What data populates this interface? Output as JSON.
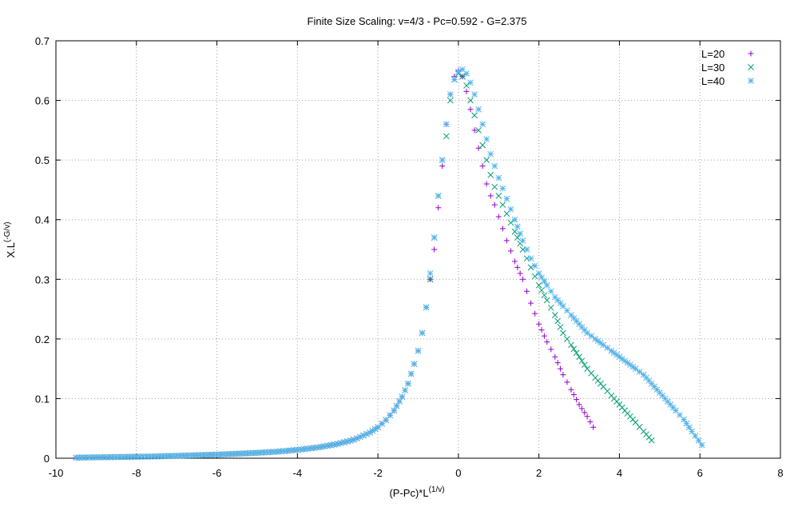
{
  "chart_data": {
    "type": "scatter",
    "title": "Finite Size Scaling: v=4/3 - Pc=0.592 - G=2.375",
    "xlabel": {
      "base": "(P-Pc)*L",
      "sup": "(1/v)"
    },
    "ylabel": {
      "base": "X.L",
      "sup": "(-G/v)"
    },
    "xlim": [
      -10,
      8
    ],
    "ylim": [
      0,
      0.7
    ],
    "x_ticks": [
      "-10",
      "-8",
      "-6",
      "-4",
      "-2",
      "0",
      "2",
      "4",
      "6",
      "8"
    ],
    "y_ticks": [
      "0",
      "0.1",
      "0.2",
      "0.3",
      "0.4",
      "0.5",
      "0.6",
      "0.7"
    ],
    "grid": true,
    "legend_position": "top-right",
    "series": [
      {
        "name": "L=20",
        "marker": "plus",
        "color": "#9400d3",
        "points": [
          [
            -9.5,
            0.001
          ],
          [
            -9.0,
            0.0015
          ],
          [
            -8.5,
            0.002
          ],
          [
            -8.0,
            0.0025
          ],
          [
            -7.5,
            0.003
          ],
          [
            -7.0,
            0.004
          ],
          [
            -6.5,
            0.005
          ],
          [
            -6.0,
            0.006
          ],
          [
            -5.5,
            0.0075
          ],
          [
            -5.0,
            0.009
          ],
          [
            -4.5,
            0.011
          ],
          [
            -4.0,
            0.014
          ],
          [
            -3.5,
            0.018
          ],
          [
            -3.0,
            0.024
          ],
          [
            -2.6,
            0.031
          ],
          [
            -2.2,
            0.043
          ],
          [
            -2.0,
            0.052
          ],
          [
            -1.8,
            0.064
          ],
          [
            -1.6,
            0.08
          ],
          [
            -1.4,
            0.103
          ],
          [
            -1.25,
            0.125
          ],
          [
            -1.1,
            0.158
          ],
          [
            -1.0,
            0.18
          ],
          [
            -0.9,
            0.21
          ],
          [
            -0.8,
            0.253
          ],
          [
            -0.7,
            0.3
          ],
          [
            -0.6,
            0.35
          ],
          [
            -0.5,
            0.42
          ],
          [
            -0.4,
            0.49
          ],
          [
            -0.3,
            0.56
          ],
          [
            -0.2,
            0.61
          ],
          [
            -0.1,
            0.64
          ],
          [
            0.0,
            0.65
          ],
          [
            0.1,
            0.64
          ],
          [
            0.2,
            0.615
          ],
          [
            0.3,
            0.585
          ],
          [
            0.4,
            0.55
          ],
          [
            0.5,
            0.52
          ],
          [
            0.6,
            0.49
          ],
          [
            0.7,
            0.46
          ],
          [
            0.8,
            0.44
          ],
          [
            0.9,
            0.425
          ],
          [
            1.0,
            0.405
          ],
          [
            1.1,
            0.385
          ],
          [
            1.2,
            0.365
          ],
          [
            1.4,
            0.33
          ],
          [
            1.6,
            0.3
          ],
          [
            1.8,
            0.26
          ],
          [
            2.0,
            0.225
          ],
          [
            2.2,
            0.195
          ],
          [
            2.4,
            0.17
          ],
          [
            2.6,
            0.14
          ],
          [
            2.8,
            0.115
          ],
          [
            3.0,
            0.09
          ],
          [
            3.2,
            0.07
          ],
          [
            3.35,
            0.052
          ]
        ]
      },
      {
        "name": "L=30",
        "marker": "cross",
        "color": "#009e73",
        "points": [
          [
            -9.5,
            0.001
          ],
          [
            -9.0,
            0.0015
          ],
          [
            -8.5,
            0.002
          ],
          [
            -8.0,
            0.0025
          ],
          [
            -7.5,
            0.003
          ],
          [
            -7.0,
            0.004
          ],
          [
            -6.5,
            0.005
          ],
          [
            -6.0,
            0.006
          ],
          [
            -5.5,
            0.0075
          ],
          [
            -5.0,
            0.009
          ],
          [
            -4.5,
            0.011
          ],
          [
            -4.0,
            0.014
          ],
          [
            -3.5,
            0.018
          ],
          [
            -3.0,
            0.024
          ],
          [
            -2.6,
            0.031
          ],
          [
            -2.2,
            0.043
          ],
          [
            -2.0,
            0.052
          ],
          [
            -1.8,
            0.064
          ],
          [
            -1.6,
            0.08
          ],
          [
            -1.4,
            0.103
          ],
          [
            -1.25,
            0.125
          ],
          [
            -1.1,
            0.158
          ],
          [
            -1.0,
            0.18
          ],
          [
            -0.9,
            0.21
          ],
          [
            -0.8,
            0.253
          ],
          [
            -0.7,
            0.3
          ],
          [
            -0.6,
            0.37
          ],
          [
            -0.5,
            0.44
          ],
          [
            -0.4,
            0.5
          ],
          [
            -0.3,
            0.54
          ],
          [
            -0.2,
            0.6
          ],
          [
            -0.1,
            0.635
          ],
          [
            0.0,
            0.645
          ],
          [
            0.1,
            0.64
          ],
          [
            0.2,
            0.625
          ],
          [
            0.3,
            0.6
          ],
          [
            0.4,
            0.575
          ],
          [
            0.5,
            0.55
          ],
          [
            0.6,
            0.525
          ],
          [
            0.7,
            0.5
          ],
          [
            0.8,
            0.475
          ],
          [
            0.9,
            0.455
          ],
          [
            1.0,
            0.44
          ],
          [
            1.2,
            0.41
          ],
          [
            1.4,
            0.38
          ],
          [
            1.6,
            0.35
          ],
          [
            1.8,
            0.32
          ],
          [
            2.0,
            0.29
          ],
          [
            2.2,
            0.265
          ],
          [
            2.4,
            0.24
          ],
          [
            2.6,
            0.21
          ],
          [
            2.8,
            0.19
          ],
          [
            3.0,
            0.17
          ],
          [
            3.2,
            0.15
          ],
          [
            3.4,
            0.135
          ],
          [
            3.6,
            0.12
          ],
          [
            3.8,
            0.105
          ],
          [
            4.0,
            0.09
          ],
          [
            4.2,
            0.075
          ],
          [
            4.4,
            0.06
          ],
          [
            4.6,
            0.045
          ],
          [
            4.8,
            0.03
          ]
        ]
      },
      {
        "name": "L=40",
        "marker": "star",
        "color": "#56b4e9",
        "points": [
          [
            -9.5,
            0.001
          ],
          [
            -9.0,
            0.0015
          ],
          [
            -8.5,
            0.002
          ],
          [
            -8.0,
            0.0025
          ],
          [
            -7.5,
            0.003
          ],
          [
            -7.0,
            0.004
          ],
          [
            -6.5,
            0.005
          ],
          [
            -6.0,
            0.006
          ],
          [
            -5.5,
            0.0075
          ],
          [
            -5.0,
            0.009
          ],
          [
            -4.5,
            0.011
          ],
          [
            -4.0,
            0.014
          ],
          [
            -3.5,
            0.018
          ],
          [
            -3.0,
            0.024
          ],
          [
            -2.6,
            0.031
          ],
          [
            -2.2,
            0.043
          ],
          [
            -2.0,
            0.052
          ],
          [
            -1.8,
            0.064
          ],
          [
            -1.6,
            0.08
          ],
          [
            -1.4,
            0.103
          ],
          [
            -1.25,
            0.125
          ],
          [
            -1.1,
            0.158
          ],
          [
            -1.0,
            0.18
          ],
          [
            -0.9,
            0.21
          ],
          [
            -0.8,
            0.253
          ],
          [
            -0.7,
            0.31
          ],
          [
            -0.6,
            0.37
          ],
          [
            -0.5,
            0.44
          ],
          [
            -0.4,
            0.5
          ],
          [
            -0.3,
            0.56
          ],
          [
            -0.2,
            0.61
          ],
          [
            -0.1,
            0.635
          ],
          [
            0.0,
            0.648
          ],
          [
            0.1,
            0.652
          ],
          [
            0.2,
            0.645
          ],
          [
            0.3,
            0.63
          ],
          [
            0.4,
            0.61
          ],
          [
            0.5,
            0.585
          ],
          [
            0.6,
            0.56
          ],
          [
            0.7,
            0.535
          ],
          [
            0.8,
            0.51
          ],
          [
            0.9,
            0.49
          ],
          [
            1.0,
            0.47
          ],
          [
            1.2,
            0.435
          ],
          [
            1.4,
            0.4
          ],
          [
            1.6,
            0.365
          ],
          [
            1.8,
            0.335
          ],
          [
            2.0,
            0.31
          ],
          [
            2.2,
            0.29
          ],
          [
            2.4,
            0.27
          ],
          [
            2.6,
            0.255
          ],
          [
            2.8,
            0.24
          ],
          [
            3.0,
            0.225
          ],
          [
            3.2,
            0.21
          ],
          [
            3.4,
            0.2
          ],
          [
            3.6,
            0.19
          ],
          [
            3.8,
            0.18
          ],
          [
            4.0,
            0.17
          ],
          [
            4.2,
            0.16
          ],
          [
            4.4,
            0.15
          ],
          [
            4.6,
            0.14
          ],
          [
            4.8,
            0.125
          ],
          [
            5.0,
            0.11
          ],
          [
            5.2,
            0.095
          ],
          [
            5.4,
            0.08
          ],
          [
            5.6,
            0.065
          ],
          [
            5.8,
            0.045
          ],
          [
            6.05,
            0.022
          ]
        ]
      }
    ]
  }
}
